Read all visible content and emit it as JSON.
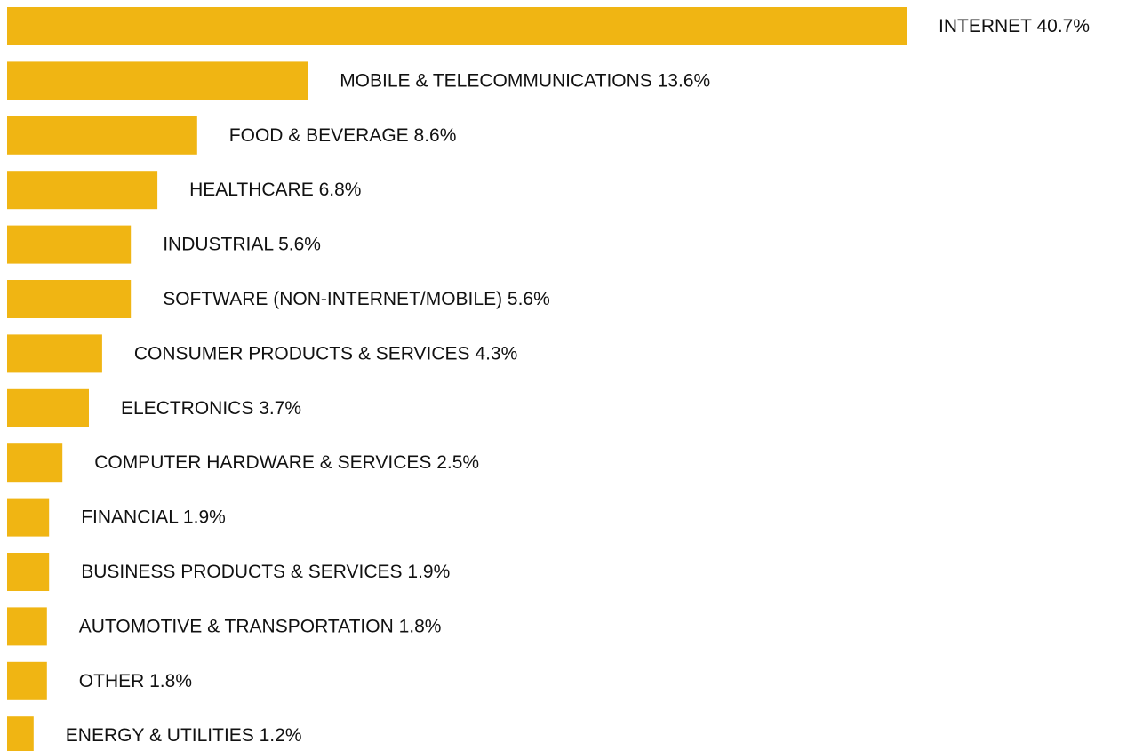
{
  "chart_data": {
    "type": "bar",
    "orientation": "horizontal",
    "bar_color": "#F0B513",
    "text_color": "#111111",
    "categories": [
      "INTERNET",
      "MOBILE & TELECOMMUNICATIONS",
      "FOOD & BEVERAGE",
      "HEALTHCARE",
      "INDUSTRIAL",
      "SOFTWARE (NON-INTERNET/MOBILE)",
      "CONSUMER PRODUCTS & SERVICES",
      "ELECTRONICS",
      "COMPUTER HARDWARE & SERVICES",
      "FINANCIAL",
      "BUSINESS PRODUCTS & SERVICES",
      "AUTOMOTIVE & TRANSPORTATION",
      "OTHER",
      "ENERGY & UTILITIES"
    ],
    "values": [
      40.7,
      13.6,
      8.6,
      6.8,
      5.6,
      5.6,
      4.3,
      3.7,
      2.5,
      1.9,
      1.9,
      1.8,
      1.8,
      1.2
    ],
    "labels": [
      "INTERNET 40.7%",
      "MOBILE & TELECOMMUNICATIONS 13.6%",
      "FOOD & BEVERAGE 8.6%",
      "HEALTHCARE 6.8%",
      "INDUSTRIAL 5.6%",
      "SOFTWARE (NON-INTERNET/MOBILE) 5.6%",
      "CONSUMER PRODUCTS & SERVICES 4.3%",
      "ELECTRONICS 3.7%",
      "COMPUTER HARDWARE & SERVICES 2.5%",
      "FINANCIAL 1.9%",
      "BUSINESS PRODUCTS & SERVICES 1.9%",
      "AUTOMOTIVE & TRANSPORTATION 1.8%",
      "OTHER 1.8%",
      "ENERGY & UTILITIES 1.2%"
    ],
    "grid": false,
    "legend": "none"
  }
}
